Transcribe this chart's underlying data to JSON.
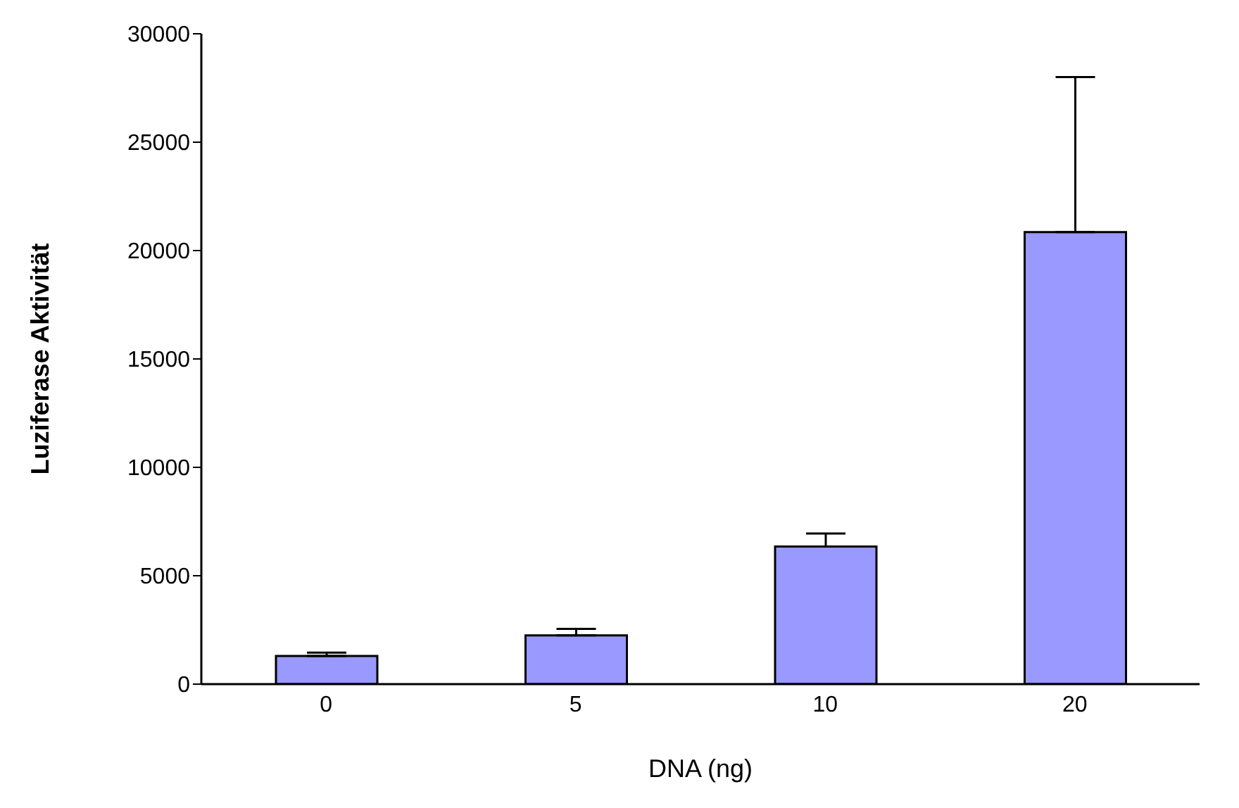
{
  "chart_data": {
    "type": "bar",
    "xlabel": "DNA (ng)",
    "ylabel": "Luziferase Aktivität",
    "categories": [
      "0",
      "5",
      "10",
      "20"
    ],
    "values": [
      1300,
      2250,
      6350,
      20850
    ],
    "errors": [
      [
        1300,
        1450
      ],
      [
        2250,
        2550
      ],
      [
        6350,
        6950
      ],
      [
        20850,
        28000
      ]
    ],
    "color": "#9999ff",
    "ylim": [
      0,
      30000
    ],
    "yticks": [
      0,
      5000,
      10000,
      15000,
      20000,
      25000,
      30000
    ],
    "grid": false,
    "legend": false
  }
}
